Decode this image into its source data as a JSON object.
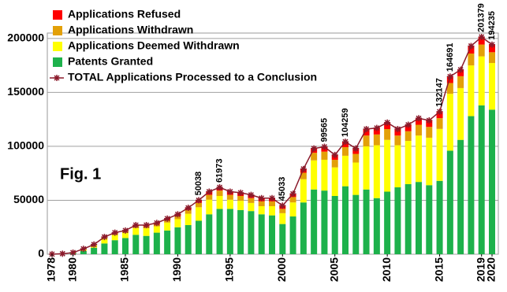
{
  "chart_data": {
    "type": "bar",
    "stacked": true,
    "annotation": "Fig. 1",
    "legend": "upper left",
    "grid": true,
    "categories": [
      "1978",
      null,
      "1980",
      null,
      null,
      null,
      null,
      "1985",
      null,
      null,
      null,
      null,
      "1990",
      null,
      null,
      null,
      null,
      "1995",
      null,
      null,
      null,
      null,
      "2000",
      null,
      null,
      null,
      null,
      "2005",
      null,
      null,
      null,
      null,
      "2010",
      null,
      null,
      null,
      null,
      "2015",
      null,
      null,
      null,
      "2019",
      "2020"
    ],
    "ylim": [
      0,
      205000
    ],
    "yticks": [
      0,
      50000,
      100000,
      150000,
      200000
    ],
    "series": [
      {
        "name": "Applications Refused",
        "color": "#ff0000",
        "values": [
          0,
          0,
          100,
          200,
          300,
          500,
          600,
          700,
          800,
          1000,
          1000,
          1200,
          1500,
          2000,
          2500,
          3000,
          3000,
          3000,
          3000,
          3000,
          3000,
          3000,
          3000,
          3000,
          3500,
          4000,
          4500,
          4500,
          5000,
          5000,
          6000,
          6000,
          6000,
          6000,
          6000,
          6000,
          6000,
          6000,
          6000,
          6000,
          7000,
          7000,
          7000
        ]
      },
      {
        "name": "Applications Withdrawn",
        "color": "#e3a008",
        "values": [
          0,
          0,
          100,
          300,
          500,
          1000,
          1200,
          1500,
          2000,
          2000,
          2200,
          2500,
          3000,
          3500,
          4000,
          4500,
          5000,
          4500,
          4500,
          4500,
          4500,
          4500,
          4000,
          5000,
          6000,
          7000,
          7500,
          7000,
          8000,
          8000,
          10000,
          10000,
          10000,
          9000,
          9000,
          10000,
          10000,
          10000,
          10000,
          11000,
          11000,
          11000,
          10000
        ]
      },
      {
        "name": "Applications Deemed Withdrawn",
        "color": "#ffff00",
        "values": [
          100,
          300,
          500,
          1500,
          2200,
          4500,
          5200,
          4800,
          6200,
          7000,
          5800,
          7300,
          7500,
          10500,
          12538,
          13500,
          11973,
          8500,
          8500,
          7500,
          7500,
          8500,
          10033,
          13000,
          21500,
          27000,
          28565,
          26500,
          28259,
          30000,
          40000,
          49000,
          48000,
          39000,
          40000,
          43000,
          44000,
          48147,
          52691,
          48000,
          47000,
          45379,
          43235
        ]
      },
      {
        "name": "Patents Granted",
        "color": "#1db14b",
        "values": [
          0,
          200,
          800,
          3000,
          6000,
          10000,
          13000,
          15000,
          18000,
          17000,
          20000,
          22000,
          25000,
          27000,
          31000,
          37000,
          42000,
          42000,
          41000,
          40000,
          37000,
          36000,
          28000,
          35000,
          48000,
          60000,
          59000,
          54000,
          63000,
          55000,
          60000,
          52000,
          58000,
          62000,
          65000,
          67000,
          64000,
          68000,
          96000,
          106000,
          128000,
          138000,
          134000
        ]
      },
      {
        "name": "TOTAL Applications Processed to a Conclusion",
        "type": "line",
        "color": "#8b1a2b",
        "values": [
          100,
          500,
          1500,
          5000,
          9000,
          16000,
          20000,
          22000,
          27000,
          27000,
          29000,
          33000,
          37000,
          43000,
          50038,
          58000,
          61973,
          58000,
          57000,
          55000,
          52000,
          52000,
          45033,
          56000,
          79000,
          98000,
          99565,
          92000,
          104259,
          98000,
          116000,
          117000,
          122000,
          116000,
          120000,
          126000,
          124000,
          132147,
          164691,
          171000,
          193000,
          201379,
          194235
        ],
        "value_labels": [
          null,
          null,
          null,
          null,
          null,
          null,
          null,
          null,
          null,
          null,
          null,
          null,
          null,
          null,
          "50038",
          null,
          "61973",
          null,
          null,
          null,
          null,
          null,
          "45033",
          null,
          null,
          null,
          "99565",
          null,
          "104259",
          null,
          null,
          null,
          null,
          null,
          null,
          null,
          null,
          "132147",
          "164691",
          null,
          null,
          "201379",
          "194235"
        ]
      }
    ]
  }
}
